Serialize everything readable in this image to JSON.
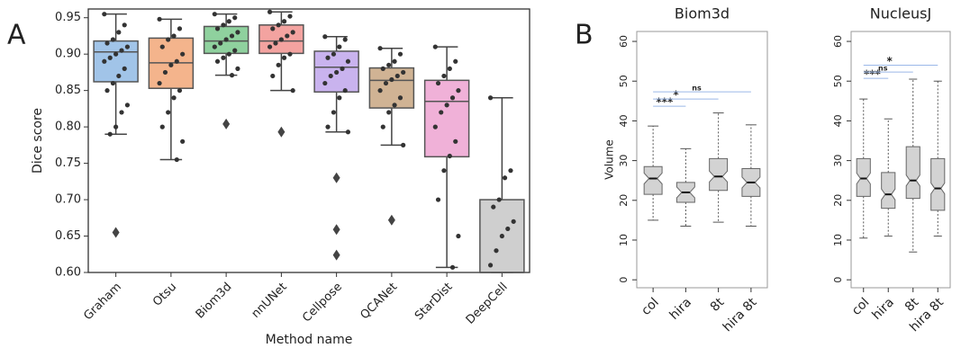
{
  "chart_data": [
    {
      "type": "box",
      "panel_label": "A",
      "ylabel": "Dice score",
      "xlabel": "Method name",
      "categories": [
        "Graham",
        "Otsu",
        "Biom3d",
        "nnUNet",
        "Cellpose",
        "QCANet",
        "StarDist",
        "DeepCell"
      ],
      "colors": [
        "#a1c4e8",
        "#f4b48c",
        "#8fd19e",
        "#f3a3a0",
        "#c9b3ee",
        "#d0b394",
        "#f0b1d8",
        "#cfcfcf"
      ],
      "ylim": [
        0.6,
        0.962
      ],
      "yticks": [
        {
          "value": 0.6,
          "label": "0.60"
        },
        0.65,
        {
          "value": 0.7,
          "label": "0.70"
        },
        0.75,
        {
          "value": 0.8,
          "label": "0.80"
        },
        0.85,
        {
          "value": 0.9,
          "label": "0.90"
        },
        0.95
      ],
      "notch": false,
      "boxes": [
        {
          "low": 0.79,
          "q1": 0.862,
          "median": 0.903,
          "q3": 0.918,
          "high": 0.955,
          "outliers": [
            0.655
          ],
          "points": [
            0.955,
            0.94,
            0.93,
            0.92,
            0.915,
            0.91,
            0.905,
            0.9,
            0.895,
            0.89,
            0.88,
            0.87,
            0.86,
            0.85,
            0.83,
            0.82,
            0.8,
            0.79
          ]
        },
        {
          "low": 0.755,
          "q1": 0.853,
          "median": 0.888,
          "q3": 0.922,
          "high": 0.948,
          "outliers": [],
          "points": [
            0.948,
            0.935,
            0.925,
            0.92,
            0.91,
            0.9,
            0.89,
            0.885,
            0.875,
            0.86,
            0.85,
            0.84,
            0.82,
            0.8,
            0.78,
            0.755
          ]
        },
        {
          "low": 0.871,
          "q1": 0.901,
          "median": 0.918,
          "q3": 0.938,
          "high": 0.955,
          "outliers": [
            0.804
          ],
          "points": [
            0.955,
            0.95,
            0.945,
            0.94,
            0.935,
            0.93,
            0.925,
            0.92,
            0.915,
            0.91,
            0.905,
            0.9,
            0.895,
            0.89,
            0.88,
            0.871
          ]
        },
        {
          "low": 0.85,
          "q1": 0.901,
          "median": 0.918,
          "q3": 0.94,
          "high": 0.958,
          "outliers": [
            0.793
          ],
          "points": [
            0.958,
            0.952,
            0.945,
            0.94,
            0.935,
            0.93,
            0.925,
            0.92,
            0.915,
            0.91,
            0.9,
            0.895,
            0.885,
            0.87,
            0.85
          ]
        },
        {
          "low": 0.793,
          "q1": 0.848,
          "median": 0.882,
          "q3": 0.904,
          "high": 0.924,
          "outliers": [
            0.73,
            0.659,
            0.624
          ],
          "points": [
            0.924,
            0.92,
            0.91,
            0.9,
            0.895,
            0.89,
            0.88,
            0.875,
            0.87,
            0.86,
            0.85,
            0.84,
            0.82,
            0.8,
            0.793
          ]
        },
        {
          "low": 0.775,
          "q1": 0.826,
          "median": 0.864,
          "q3": 0.881,
          "high": 0.908,
          "outliers": [
            0.672
          ],
          "points": [
            0.908,
            0.9,
            0.89,
            0.885,
            0.88,
            0.875,
            0.87,
            0.865,
            0.86,
            0.85,
            0.84,
            0.83,
            0.82,
            0.8,
            0.775
          ]
        },
        {
          "low": 0.607,
          "q1": 0.759,
          "median": 0.835,
          "q3": 0.864,
          "high": 0.91,
          "outliers": [],
          "points": [
            0.91,
            0.89,
            0.88,
            0.87,
            0.86,
            0.85,
            0.84,
            0.83,
            0.82,
            0.8,
            0.78,
            0.76,
            0.74,
            0.7,
            0.65,
            0.607
          ]
        },
        {
          "low": 0.6,
          "q1": 0.6,
          "median": 0.6,
          "q3": 0.7,
          "high": 0.84,
          "outliers": [],
          "points": [
            0.84,
            0.74,
            0.73,
            0.7,
            0.69,
            0.67,
            0.66,
            0.65,
            0.63,
            0.61
          ]
        }
      ]
    },
    {
      "type": "box",
      "panel_label": "B",
      "title": "Biom3d",
      "ylabel": "Volume",
      "categories": [
        "col",
        "hira",
        "8t",
        "hira 8t"
      ],
      "colors": [
        "#d3d3d3",
        "#d3d3d3",
        "#d3d3d3",
        "#d3d3d3"
      ],
      "ylim": [
        -2,
        62.5
      ],
      "yticks": [
        0,
        10,
        20,
        30,
        40,
        50,
        60
      ],
      "notch": true,
      "boxes": [
        {
          "low": 15,
          "q1": 21.5,
          "median": 25.5,
          "q3": 28.5,
          "high": 38.7,
          "outliers": [],
          "points": []
        },
        {
          "low": 13.5,
          "q1": 19.5,
          "median": 22,
          "q3": 24.5,
          "high": 33,
          "outliers": [],
          "points": []
        },
        {
          "low": 14.5,
          "q1": 22.5,
          "median": 26,
          "q3": 30.5,
          "high": 42,
          "outliers": [],
          "points": []
        },
        {
          "low": 13.5,
          "q1": 21,
          "median": 24.5,
          "q3": 28,
          "high": 39,
          "outliers": [],
          "points": []
        }
      ],
      "annotations": [
        {
          "text": "***",
          "from": "col",
          "to": "hira",
          "y": 43.7
        },
        {
          "text": "*",
          "from": "col",
          "to": "8t",
          "y": 45.5
        },
        {
          "text": "ns",
          "from": "col",
          "to": "hira 8t",
          "y": 47.3
        }
      ]
    },
    {
      "type": "box",
      "title": "NucleusJ",
      "categories": [
        "col",
        "hira",
        "8t",
        "hira 8t"
      ],
      "colors": [
        "#d3d3d3",
        "#d3d3d3",
        "#d3d3d3",
        "#d3d3d3"
      ],
      "ylim": [
        -2,
        62.5
      ],
      "yticks": [
        0,
        10,
        20,
        30,
        40,
        50,
        60
      ],
      "notch": true,
      "boxes": [
        {
          "low": 10.5,
          "q1": 21,
          "median": 25.5,
          "q3": 30.5,
          "high": 45.5,
          "outliers": [],
          "points": []
        },
        {
          "low": 11,
          "q1": 18,
          "median": 21.5,
          "q3": 27,
          "high": 40.5,
          "outliers": [],
          "points": []
        },
        {
          "low": 7,
          "q1": 20.5,
          "median": 25,
          "q3": 33.5,
          "high": 50.5,
          "outliers": [],
          "points": []
        },
        {
          "low": 11,
          "q1": 17.5,
          "median": 23,
          "q3": 30.5,
          "high": 50,
          "outliers": [],
          "points": []
        }
      ],
      "annotations": [
        {
          "text": "***",
          "from": "col",
          "to": "hira",
          "y": 50.7
        },
        {
          "text": "ns",
          "from": "col",
          "to": "8t",
          "y": 52.3
        },
        {
          "text": "*",
          "from": "col",
          "to": "hira 8t",
          "y": 54
        }
      ]
    }
  ]
}
